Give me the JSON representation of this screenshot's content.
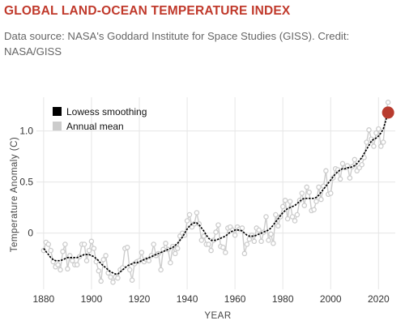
{
  "header": {
    "title": "GLOBAL LAND-OCEAN TEMPERATURE INDEX",
    "subtitle": "Data source: NASA's Goddard Institute for Space Studies (GISS). Credit: NASA/GISS"
  },
  "chart_data": {
    "type": "line",
    "xlabel": "YEAR",
    "ylabel": "Temperature Anomaly (C)",
    "xlim": [
      1877,
      2027
    ],
    "ylim": [
      -0.55,
      1.33
    ],
    "x_ticks": [
      1880,
      1900,
      1920,
      1940,
      1960,
      1980,
      2000,
      2020
    ],
    "y_ticks": [
      0,
      0.5,
      1.0
    ],
    "y_tick_labels": [
      "0",
      "0.5",
      "1.0"
    ],
    "grid": true,
    "legend_position": "top-left",
    "colors": {
      "smoothing": "#000000",
      "annual": "#cccccc",
      "highlight": "#b83b2e"
    },
    "x": [
      1880,
      1881,
      1882,
      1883,
      1884,
      1885,
      1886,
      1887,
      1888,
      1889,
      1890,
      1891,
      1892,
      1893,
      1894,
      1895,
      1896,
      1897,
      1898,
      1899,
      1900,
      1901,
      1902,
      1903,
      1904,
      1905,
      1906,
      1907,
      1908,
      1909,
      1910,
      1911,
      1912,
      1913,
      1914,
      1915,
      1916,
      1917,
      1918,
      1919,
      1920,
      1921,
      1922,
      1923,
      1924,
      1925,
      1926,
      1927,
      1928,
      1929,
      1930,
      1931,
      1932,
      1933,
      1934,
      1935,
      1936,
      1937,
      1938,
      1939,
      1940,
      1941,
      1942,
      1943,
      1944,
      1945,
      1946,
      1947,
      1948,
      1949,
      1950,
      1951,
      1952,
      1953,
      1954,
      1955,
      1956,
      1957,
      1958,
      1959,
      1960,
      1961,
      1962,
      1963,
      1964,
      1965,
      1966,
      1967,
      1968,
      1969,
      1970,
      1971,
      1972,
      1973,
      1974,
      1975,
      1976,
      1977,
      1978,
      1979,
      1980,
      1981,
      1982,
      1983,
      1984,
      1985,
      1986,
      1987,
      1988,
      1989,
      1990,
      1991,
      1992,
      1993,
      1994,
      1995,
      1996,
      1997,
      1998,
      1999,
      2000,
      2001,
      2002,
      2003,
      2004,
      2005,
      2006,
      2007,
      2008,
      2009,
      2010,
      2011,
      2012,
      2013,
      2014,
      2015,
      2016,
      2017,
      2018,
      2019,
      2020,
      2021,
      2022,
      2023,
      2024
    ],
    "series": [
      {
        "name": "Annual mean",
        "values": [
          -0.17,
          -0.09,
          -0.11,
          -0.17,
          -0.28,
          -0.33,
          -0.31,
          -0.36,
          -0.18,
          -0.11,
          -0.35,
          -0.22,
          -0.27,
          -0.31,
          -0.31,
          -0.23,
          -0.11,
          -0.11,
          -0.27,
          -0.17,
          -0.08,
          -0.15,
          -0.28,
          -0.37,
          -0.47,
          -0.26,
          -0.22,
          -0.39,
          -0.43,
          -0.48,
          -0.43,
          -0.44,
          -0.36,
          -0.34,
          -0.15,
          -0.14,
          -0.36,
          -0.46,
          -0.3,
          -0.28,
          -0.27,
          -0.19,
          -0.28,
          -0.26,
          -0.27,
          -0.22,
          -0.11,
          -0.22,
          -0.2,
          -0.36,
          -0.16,
          -0.1,
          -0.16,
          -0.29,
          -0.13,
          -0.2,
          -0.15,
          -0.03,
          -0.0,
          -0.02,
          0.12,
          0.18,
          0.06,
          0.09,
          0.2,
          0.09,
          -0.07,
          -0.03,
          -0.11,
          -0.11,
          -0.17,
          -0.07,
          0.01,
          0.08,
          -0.13,
          -0.14,
          -0.19,
          0.05,
          0.06,
          0.03,
          -0.02,
          0.06,
          0.04,
          0.05,
          -0.2,
          -0.11,
          -0.06,
          -0.02,
          -0.08,
          0.05,
          0.03,
          -0.08,
          0.01,
          0.16,
          -0.07,
          -0.01,
          -0.1,
          0.18,
          0.07,
          0.16,
          0.26,
          0.32,
          0.14,
          0.31,
          0.16,
          0.12,
          0.18,
          0.32,
          0.39,
          0.27,
          0.45,
          0.4,
          0.22,
          0.23,
          0.31,
          0.45,
          0.33,
          0.46,
          0.61,
          0.38,
          0.39,
          0.54,
          0.63,
          0.62,
          0.53,
          0.68,
          0.64,
          0.66,
          0.54,
          0.65,
          0.72,
          0.61,
          0.64,
          0.67,
          0.74,
          0.89,
          1.01,
          0.92,
          0.85,
          0.98,
          1.02,
          0.85,
          0.89,
          1.17,
          1.28
        ]
      },
      {
        "name": "Lowess smoothing",
        "values": [
          -0.15,
          -0.18,
          -0.21,
          -0.24,
          -0.26,
          -0.27,
          -0.27,
          -0.27,
          -0.26,
          -0.25,
          -0.24,
          -0.24,
          -0.24,
          -0.24,
          -0.24,
          -0.23,
          -0.22,
          -0.21,
          -0.21,
          -0.21,
          -0.22,
          -0.23,
          -0.25,
          -0.27,
          -0.3,
          -0.32,
          -0.34,
          -0.36,
          -0.38,
          -0.39,
          -0.4,
          -0.4,
          -0.38,
          -0.36,
          -0.34,
          -0.32,
          -0.31,
          -0.3,
          -0.29,
          -0.29,
          -0.28,
          -0.27,
          -0.26,
          -0.25,
          -0.24,
          -0.23,
          -0.22,
          -0.21,
          -0.2,
          -0.19,
          -0.18,
          -0.17,
          -0.16,
          -0.15,
          -0.14,
          -0.12,
          -0.1,
          -0.07,
          -0.04,
          0.0,
          0.04,
          0.07,
          0.09,
          0.1,
          0.1,
          0.08,
          0.05,
          0.02,
          -0.02,
          -0.05,
          -0.07,
          -0.07,
          -0.07,
          -0.06,
          -0.05,
          -0.04,
          -0.03,
          -0.01,
          0.01,
          0.02,
          0.03,
          0.03,
          0.03,
          0.02,
          0.0,
          -0.02,
          -0.03,
          -0.03,
          -0.03,
          -0.02,
          -0.01,
          0.0,
          0.01,
          0.02,
          0.03,
          0.05,
          0.08,
          0.11,
          0.14,
          0.17,
          0.2,
          0.22,
          0.24,
          0.25,
          0.26,
          0.27,
          0.29,
          0.31,
          0.33,
          0.34,
          0.34,
          0.34,
          0.34,
          0.34,
          0.35,
          0.37,
          0.4,
          0.43,
          0.46,
          0.49,
          0.52,
          0.55,
          0.58,
          0.6,
          0.62,
          0.63,
          0.63,
          0.64,
          0.64,
          0.65,
          0.66,
          0.68,
          0.71,
          0.74,
          0.78,
          0.82,
          0.86,
          0.9,
          0.92,
          0.93,
          0.95,
          0.98,
          1.02,
          1.1,
          1.18
        ]
      }
    ],
    "highlight_point": {
      "x": 2024,
      "y": 1.18
    }
  }
}
